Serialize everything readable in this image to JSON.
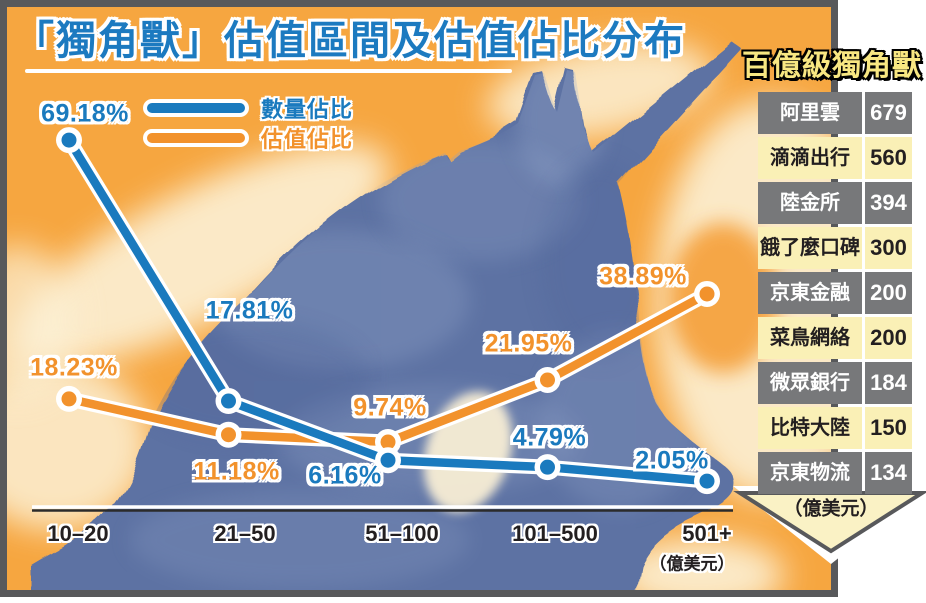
{
  "title": "「獨角獸」估值區間及估值佔比分布",
  "legend": {
    "items": [
      {
        "label": "數量佔比",
        "color": "#1a7abe"
      },
      {
        "label": "估值佔比",
        "color": "#f2922c"
      }
    ]
  },
  "chart_data": {
    "type": "line",
    "categories": [
      "10–20",
      "21–50",
      "51–100",
      "101–500",
      "501+"
    ],
    "x_axis_unit": "（億美元）",
    "value_suffix": "%",
    "grid": false,
    "legend_position": "top-left",
    "series": [
      {
        "name": "數量佔比",
        "color": "#1a7abe",
        "values": [
          69.18,
          17.81,
          6.16,
          4.79,
          2.05
        ]
      },
      {
        "name": "估值佔比",
        "color": "#f2922c",
        "values": [
          18.23,
          11.18,
          9.74,
          21.95,
          38.89
        ]
      }
    ]
  },
  "side_table": {
    "title": "百億級獨角獸",
    "unit": "（億美元）",
    "rows": [
      {
        "name": "阿里雲",
        "value": "679"
      },
      {
        "name": "滴滴出行",
        "value": "560"
      },
      {
        "name": "陸金所",
        "value": "394"
      },
      {
        "name": "餓了麼口碑",
        "value": "300"
      },
      {
        "name": "京東金融",
        "value": "200"
      },
      {
        "name": "菜鳥網絡",
        "value": "200"
      },
      {
        "name": "微眾銀行",
        "value": "184"
      },
      {
        "name": "比特大陸",
        "value": "150"
      },
      {
        "name": "京東物流",
        "value": "134"
      }
    ]
  },
  "colors": {
    "canvas_background": "#f6a640",
    "cream_wash": "#fcf1d6",
    "silhouette_blue": "#5d72a3",
    "frame_gray": "#58595b",
    "row_gray": "#77787a",
    "row_yellow": "#faf0b6",
    "title_blue": "#1c7ac0",
    "table_title_yellow": "#f8e782",
    "arrow_fill": "#faf2c5"
  }
}
